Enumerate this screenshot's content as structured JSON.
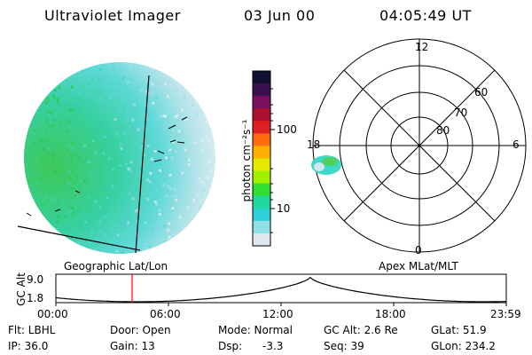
{
  "header": {
    "instrument": "Ultraviolet Imager",
    "date": "03 Jun 00",
    "time": "04:05:49 UT"
  },
  "colorbar": {
    "label": "photon cm⁻²s⁻¹",
    "ticks": [
      "100",
      "10"
    ],
    "colors": [
      "#101030",
      "#3a1050",
      "#7a1060",
      "#b01030",
      "#e02020",
      "#ff6a10",
      "#ffb000",
      "#e8e800",
      "#a0f000",
      "#30e030",
      "#20d8a0",
      "#30d0d8",
      "#90e0e8",
      "#e0e8ee"
    ]
  },
  "polar_plot": {
    "mlt_labels": {
      "top": "12",
      "left": "18",
      "right": "6",
      "bottom": "0"
    },
    "lat_labels": [
      "60",
      "70",
      "80"
    ]
  },
  "panel_labels": {
    "left": "Geographic Lat/Lon",
    "right": "Apex MLat/MLT"
  },
  "altitude_plot": {
    "ylabel": "GC Alt",
    "y_ticks": [
      "9.0",
      "1.8"
    ],
    "x_ticks": [
      "00:00",
      "06:00",
      "12:00",
      "18:00",
      "23:59"
    ],
    "marker_color": "#ff0000"
  },
  "info": {
    "filter": "Flt: LBHL",
    "ip": "IP: 36.0",
    "door": "Door: Open",
    "gain": "Gain: 13",
    "mode": "Mode: Normal",
    "dsp_label": "Dsp:",
    "dsp_value": "-3.3",
    "gc_alt": "GC Alt: 2.6 Re",
    "seq": "Seq: 39",
    "glat": "GLat:  51.9",
    "glon": "GLon: 234.2"
  }
}
